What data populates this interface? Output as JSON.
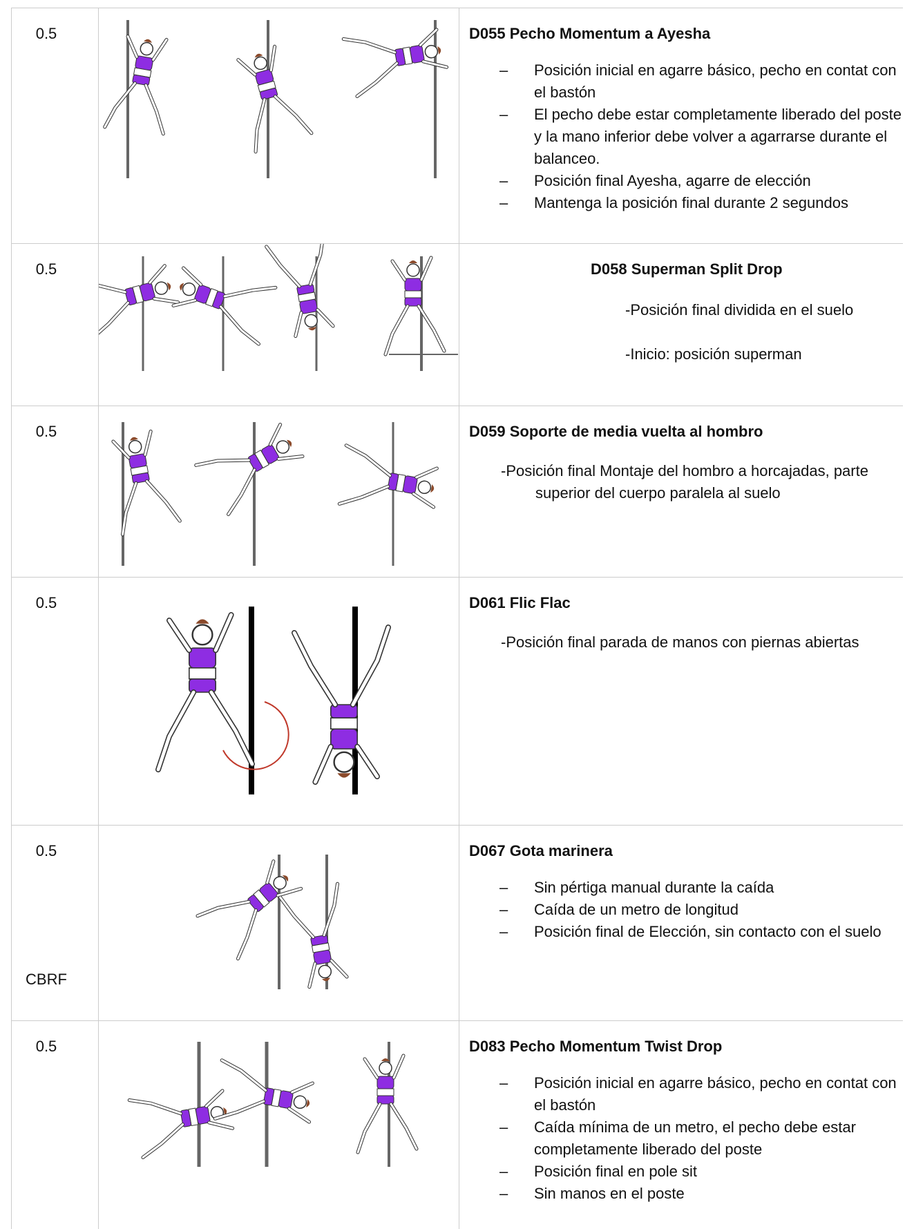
{
  "rows": [
    {
      "score": "0.5",
      "title": "D055 Pecho Momentum a Ayesha",
      "bullets": [
        "Posición inicial en agarre básico, pecho en contat con el bastón",
        "El pecho debe estar completamente liberado del poste y la mano inferior debe volver a agarrarse durante el balanceo.",
        "Posición final Ayesha, agarre de elección",
        "Mantenga la posición final durante 2 segundos"
      ]
    },
    {
      "score": "0.5",
      "title": "D058 Superman Split Drop",
      "lines": [
        "-Posición final dividida en el suelo",
        "-Inicio: posición superman"
      ]
    },
    {
      "score": "0.5",
      "title": "D059 Soporte de media vuelta al hombro",
      "lines": [
        "-Posición final Montaje del hombro a horcajadas, parte superior del cuerpo paralela al suelo"
      ]
    },
    {
      "score": "0.5",
      "title": "D061 Flic Flac",
      "lines": [
        "-Posición final parada de manos con piernas abiertas"
      ]
    },
    {
      "score": "0.5",
      "note": "CBRF",
      "title": "D067 Gota marinera",
      "bullets": [
        "Sin pértiga manual durante la caída",
        "Caída de un metro de longitud",
        "Posición final de Elección, sin contacto con el suelo"
      ]
    },
    {
      "score": "0.5",
      "title": "D083 Pecho Momentum Twist Drop",
      "bullets": [
        "Posición inicial en agarre básico, pecho en contat con el bastón",
        "Caída mínima de un metro, el pecho debe estar completamente liberado del poste",
        "Posición final en pole sit",
        "Sin manos en el poste"
      ]
    }
  ]
}
